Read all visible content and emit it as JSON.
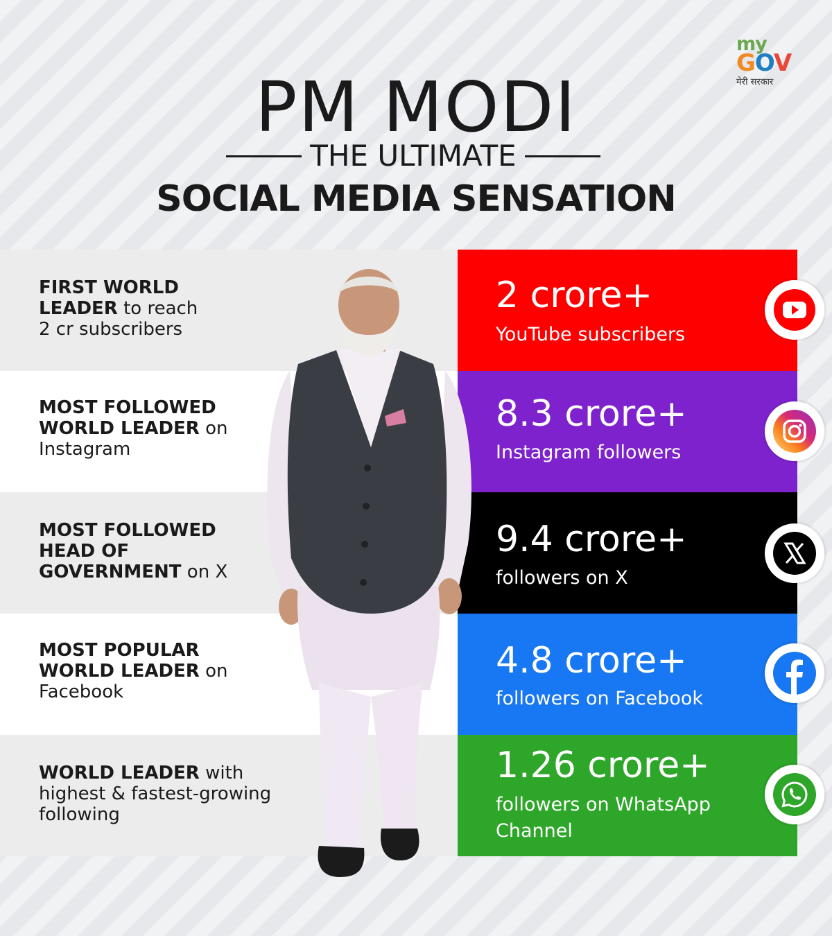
{
  "logo": {
    "line1": "my",
    "line2": [
      "G",
      "O",
      "V"
    ],
    "tagline": "मेरी सरकार"
  },
  "title": "PM MODI",
  "subtitle": "THE ULTIMATE",
  "headline": "SOCIAL MEDIA SENSATION",
  "achievements": [
    {
      "bold1": "FIRST WORLD",
      "bold2": "LEADER",
      "rest": " to reach",
      "line3": "2 cr subscribers"
    },
    {
      "bold1": "MOST FOLLOWED",
      "bold2": "WORLD LEADER",
      "rest": " on",
      "line3": "Instagram"
    },
    {
      "bold1": "MOST FOLLOWED",
      "bold2": "HEAD OF",
      "bold3": "GOVERNMENT",
      "rest": " on X"
    },
    {
      "bold1": "MOST POPULAR",
      "bold2": "WORLD LEADER",
      "rest": " on",
      "line3": "Facebook"
    },
    {
      "bold1": "WORLD LEADER",
      "rest": " with",
      "line2": "highest & fastest-growing",
      "line3": "following"
    }
  ],
  "stats": [
    {
      "value": "2 crore+",
      "label": "YouTube subscribers",
      "color": "#ff0000",
      "icon": "youtube-icon"
    },
    {
      "value": "8.3 crore+",
      "label": "Instagram followers",
      "color": "#7e22ce",
      "icon": "instagram-icon"
    },
    {
      "value": "9.4 crore+",
      "label": "followers on X",
      "color": "#000000",
      "icon": "x-icon"
    },
    {
      "value": "4.8 crore+",
      "label": "followers on Facebook",
      "color": "#1877f2",
      "icon": "facebook-icon"
    },
    {
      "value": "1.26 crore+",
      "label": "followers on WhatsApp Channel",
      "color": "#2ea62a",
      "icon": "whatsapp-icon"
    }
  ]
}
